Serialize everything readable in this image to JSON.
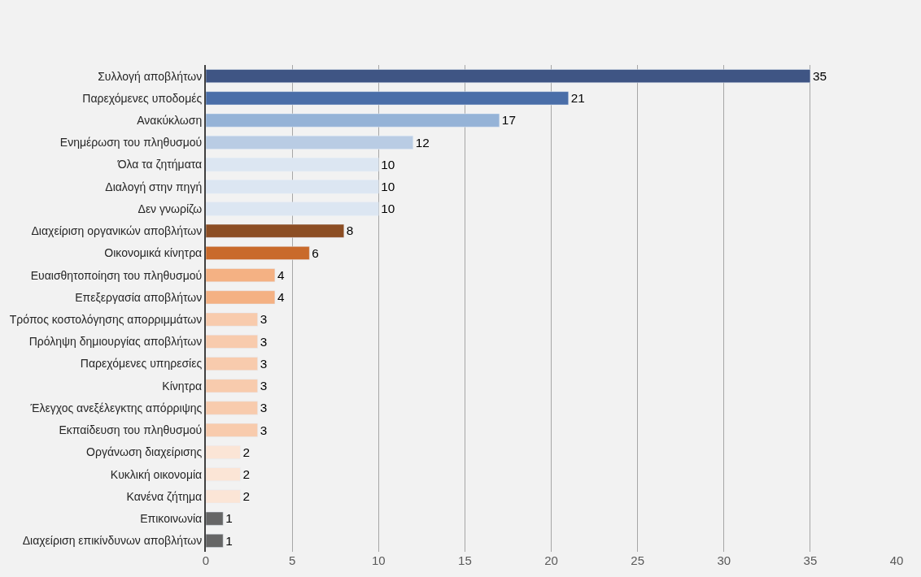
{
  "chart_data": {
    "type": "bar",
    "orientation": "horizontal",
    "categories": [
      "Συλλογή αποβλήτων",
      "Παρεχόμενες υποδομές",
      "Ανακύκλωση",
      "Ενημέρωση του πληθυσμού",
      "Όλα τα ζητήματα",
      "Διαλογή στην πηγή",
      "Δεν γνωρίζω",
      "Διαχείριση οργανικών αποβλήτων",
      "Οικονομικά κίνητρα",
      "Ευαισθητοποίηση του πληθυσμού",
      "Επεξεργασία αποβλήτων",
      "Τρόπος κοστολόγησης απορριμμάτων",
      "Πρόληψη δημιουργίας αποβλήτων",
      "Παρεχόμενες υπηρεσίες",
      "Κίνητρα",
      "Έλεγχος ανεξέλεγκτης απόρριψης",
      "Εκπαίδευση του πληθυσμού",
      "Οργάνωση διαχείρισης",
      "Κυκλική οικονομία",
      "Κανένα ζήτημα",
      "Επικοινωνία",
      "Διαχείριση επικίνδυνων αποβλήτων"
    ],
    "values": [
      35,
      21,
      17,
      12,
      10,
      10,
      10,
      8,
      6,
      4,
      4,
      3,
      3,
      3,
      3,
      3,
      3,
      2,
      2,
      2,
      1,
      1
    ],
    "colors": [
      "#3f5584",
      "#4a6ea8",
      "#95b3d7",
      "#b9cce4",
      "#dce6f2",
      "#dce6f2",
      "#dce6f2",
      "#8c4e24",
      "#c96a2b",
      "#f4b183",
      "#f4b183",
      "#f8cbad",
      "#f8cbad",
      "#f8cbad",
      "#f8cbad",
      "#f8cbad",
      "#f8cbad",
      "#fbe5d6",
      "#fbe5d6",
      "#fbe5d6",
      "#666666",
      "#666666"
    ],
    "xlim": [
      0,
      40
    ],
    "xticks": [
      0,
      5,
      10,
      15,
      20,
      25,
      30,
      35,
      40
    ],
    "grid": "x",
    "data_labels": true
  }
}
